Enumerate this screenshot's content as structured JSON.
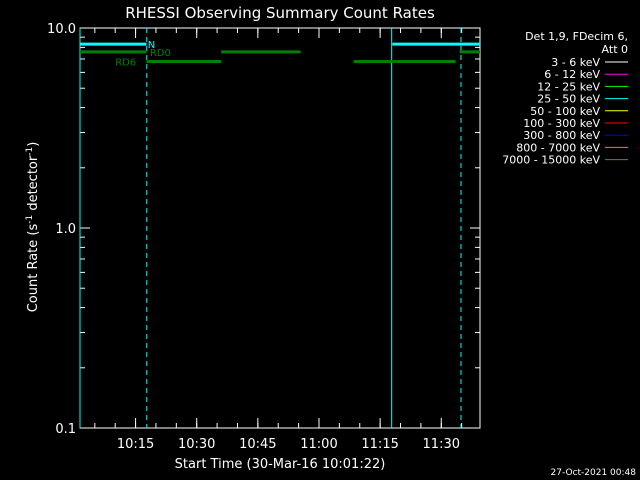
{
  "chart_data": {
    "type": "line",
    "title": "RHESSI Observing Summary Count Rates",
    "xlabel": "Start Time (30-Mar-16 10:01:22)",
    "ylabel": "Count Rate (s⁻¹ detector⁻¹)",
    "ylabel_main": "Count Rate (s",
    "ylabel_sup1": "-1",
    "ylabel_mid": " detector",
    "ylabel_sup2": "-1",
    "ylabel_end": ")",
    "yscale": "log",
    "ylim": [
      0.1,
      10.0
    ],
    "xlim": [
      "10:01:22",
      "11:39:30"
    ],
    "y_ticks": [
      {
        "value": 0.1,
        "label": "0.1"
      },
      {
        "value": 1.0,
        "label": "1.0"
      },
      {
        "value": 10.0,
        "label": "10.0"
      }
    ],
    "x_ticks": [
      {
        "time": "10:15",
        "label": "10:15"
      },
      {
        "time": "10:30",
        "label": "10:30"
      },
      {
        "time": "10:45",
        "label": "10:45"
      },
      {
        "time": "11:00",
        "label": "11:00"
      },
      {
        "time": "11:15",
        "label": "11:15"
      },
      {
        "time": "11:30",
        "label": "11:30"
      }
    ],
    "legend": {
      "placement": "right",
      "header": [
        "Det 1,9, FDecim 6,",
        "Att 0"
      ],
      "entries": [
        {
          "label": "3 - 6 keV",
          "color": "#ffffff"
        },
        {
          "label": "6 - 12 keV",
          "color": "#ff00ff"
        },
        {
          "label": "12 - 25 keV",
          "color": "#00ff00"
        },
        {
          "label": "25 - 50 keV",
          "color": "#00ffff"
        },
        {
          "label": "50 - 100 keV",
          "color": "#ffff00"
        },
        {
          "label": "100 - 300 keV",
          "color": "#ff0000"
        },
        {
          "label": "300 - 800 keV",
          "color": "#0000ff"
        },
        {
          "label": "800 - 7000 keV",
          "color": "#ff8000"
        },
        {
          "label": "7000 - 15000 keV",
          "color": "#808000"
        }
      ]
    },
    "flag_bars": [
      {
        "name": "N",
        "color": "#00ffff",
        "label_at": "10:18",
        "segments": [
          {
            "start": "10:01:22",
            "end": "10:17:40",
            "value": 8.3
          },
          {
            "start": "11:18:00",
            "end": "11:39:30",
            "value": 8.3
          }
        ]
      },
      {
        "name": "RD0",
        "color": "#008000",
        "label_at": "10:18:30",
        "segments": [
          {
            "start": "10:01:22",
            "end": "10:17:40",
            "value": 7.6
          },
          {
            "start": "10:36:00",
            "end": "10:55:30",
            "value": 7.6
          },
          {
            "start": "11:34:30",
            "end": "11:39:30",
            "value": 7.6
          }
        ]
      },
      {
        "name": "RD6",
        "color": "#008000",
        "label_at": "10:10",
        "segments": [
          {
            "start": "10:17:40",
            "end": "10:36:00",
            "value": 6.8
          },
          {
            "start": "11:08:30",
            "end": "11:33:30",
            "value": 6.8
          }
        ]
      }
    ],
    "vertical_markers": [
      {
        "time": "10:01:22",
        "style": "solid",
        "color": "#00ffff"
      },
      {
        "time": "10:17:45",
        "style": "dashed",
        "color": "#00ffff"
      },
      {
        "time": "11:17:50",
        "style": "solid",
        "color": "#00ffff"
      },
      {
        "time": "11:34:50",
        "style": "dashed",
        "color": "#00ffff"
      }
    ]
  },
  "timestamp": "27-Oct-2021 00:48"
}
